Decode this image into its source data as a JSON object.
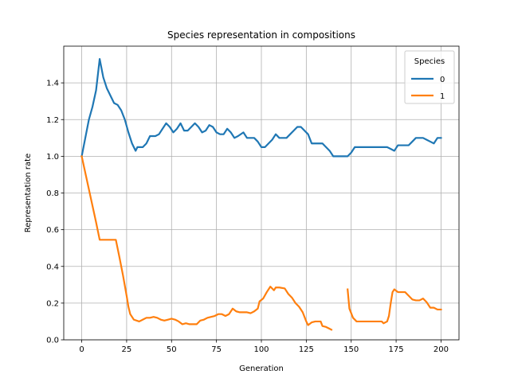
{
  "chart_data": {
    "type": "line",
    "title": "Species representation in compositions",
    "xlabel": "Generation",
    "ylabel": "Representation rate",
    "xlim": [
      -10,
      210
    ],
    "ylim": [
      0.0,
      1.6
    ],
    "xticks": [
      0,
      25,
      50,
      75,
      100,
      125,
      150,
      175,
      200
    ],
    "xtick_labels": [
      "0",
      "25",
      "50",
      "75",
      "100",
      "125",
      "150",
      "175",
      "200"
    ],
    "yticks": [
      0.0,
      0.2,
      0.4,
      0.6,
      0.8,
      1.0,
      1.2,
      1.4
    ],
    "ytick_labels": [
      "0.0",
      "0.2",
      "0.4",
      "0.6",
      "0.8",
      "1.0",
      "1.2",
      "1.4"
    ],
    "grid": true,
    "legend": {
      "title": "Species",
      "placement": "top-right"
    },
    "series": [
      {
        "name": "0",
        "color": "#1f77b4",
        "points": [
          [
            0,
            1.0
          ],
          [
            2,
            1.1
          ],
          [
            4,
            1.2
          ],
          [
            6,
            1.27
          ],
          [
            8,
            1.36
          ],
          [
            10,
            1.53
          ],
          [
            12,
            1.43
          ],
          [
            14,
            1.37
          ],
          [
            16,
            1.33
          ],
          [
            18,
            1.29
          ],
          [
            20,
            1.28
          ],
          [
            22,
            1.25
          ],
          [
            24,
            1.2
          ],
          [
            26,
            1.13
          ],
          [
            28,
            1.07
          ],
          [
            30,
            1.03
          ],
          [
            31,
            1.05
          ],
          [
            34,
            1.05
          ],
          [
            36,
            1.07
          ],
          [
            38,
            1.11
          ],
          [
            41,
            1.11
          ],
          [
            43,
            1.12
          ],
          [
            45,
            1.15
          ],
          [
            47,
            1.18
          ],
          [
            49,
            1.16
          ],
          [
            51,
            1.13
          ],
          [
            53,
            1.15
          ],
          [
            55,
            1.18
          ],
          [
            57,
            1.14
          ],
          [
            59,
            1.14
          ],
          [
            61,
            1.16
          ],
          [
            63,
            1.18
          ],
          [
            65,
            1.16
          ],
          [
            67,
            1.13
          ],
          [
            69,
            1.14
          ],
          [
            71,
            1.17
          ],
          [
            73,
            1.16
          ],
          [
            75,
            1.13
          ],
          [
            77,
            1.12
          ],
          [
            79,
            1.12
          ],
          [
            81,
            1.15
          ],
          [
            83,
            1.13
          ],
          [
            85,
            1.1
          ],
          [
            87,
            1.11
          ],
          [
            90,
            1.13
          ],
          [
            92,
            1.1
          ],
          [
            96,
            1.1
          ],
          [
            98,
            1.08
          ],
          [
            100,
            1.05
          ],
          [
            102,
            1.05
          ],
          [
            104,
            1.07
          ],
          [
            106,
            1.09
          ],
          [
            108,
            1.12
          ],
          [
            110,
            1.1
          ],
          [
            114,
            1.1
          ],
          [
            116,
            1.12
          ],
          [
            118,
            1.14
          ],
          [
            120,
            1.16
          ],
          [
            122,
            1.16
          ],
          [
            124,
            1.14
          ],
          [
            126,
            1.12
          ],
          [
            128,
            1.07
          ],
          [
            134,
            1.07
          ],
          [
            136,
            1.05
          ],
          [
            138,
            1.03
          ],
          [
            140,
            1.0
          ],
          [
            148,
            1.0
          ],
          [
            150,
            1.02
          ],
          [
            152,
            1.05
          ],
          [
            170,
            1.05
          ],
          [
            172,
            1.04
          ],
          [
            174,
            1.03
          ],
          [
            176,
            1.06
          ],
          [
            182,
            1.06
          ],
          [
            184,
            1.08
          ],
          [
            186,
            1.1
          ],
          [
            188,
            1.1
          ],
          [
            190,
            1.1
          ],
          [
            192,
            1.09
          ],
          [
            194,
            1.08
          ],
          [
            196,
            1.07
          ],
          [
            198,
            1.1
          ],
          [
            200,
            1.1
          ]
        ]
      },
      {
        "name": "1",
        "color": "#ff7f0e",
        "points": [
          [
            0,
            1.0
          ],
          [
            2,
            0.91
          ],
          [
            4,
            0.82
          ],
          [
            6,
            0.73
          ],
          [
            8,
            0.64
          ],
          [
            10,
            0.545
          ],
          [
            14,
            0.545
          ],
          [
            16,
            0.545
          ],
          [
            19,
            0.545
          ],
          [
            21,
            0.45
          ],
          [
            23,
            0.35
          ],
          [
            25,
            0.24
          ],
          [
            26,
            0.18
          ],
          [
            27,
            0.14
          ],
          [
            29,
            0.11
          ],
          [
            32,
            0.1
          ],
          [
            34,
            0.11
          ],
          [
            36,
            0.12
          ],
          [
            38,
            0.12
          ],
          [
            40,
            0.125
          ],
          [
            42,
            0.12
          ],
          [
            44,
            0.11
          ],
          [
            46,
            0.105
          ],
          [
            48,
            0.11
          ],
          [
            50,
            0.115
          ],
          [
            52,
            0.11
          ],
          [
            54,
            0.1
          ],
          [
            56,
            0.085
          ],
          [
            58,
            0.09
          ],
          [
            60,
            0.085
          ],
          [
            62,
            0.085
          ],
          [
            64,
            0.085
          ],
          [
            66,
            0.105
          ],
          [
            68,
            0.11
          ],
          [
            70,
            0.12
          ],
          [
            72,
            0.125
          ],
          [
            74,
            0.13
          ],
          [
            76,
            0.14
          ],
          [
            78,
            0.14
          ],
          [
            80,
            0.13
          ],
          [
            82,
            0.14
          ],
          [
            84,
            0.17
          ],
          [
            86,
            0.155
          ],
          [
            88,
            0.15
          ],
          [
            90,
            0.15
          ],
          [
            92,
            0.15
          ],
          [
            94,
            0.145
          ],
          [
            96,
            0.155
          ],
          [
            98,
            0.17
          ],
          [
            99,
            0.21
          ],
          [
            101,
            0.225
          ],
          [
            103,
            0.26
          ],
          [
            105,
            0.29
          ],
          [
            107,
            0.27
          ],
          [
            108,
            0.285
          ],
          [
            110,
            0.285
          ],
          [
            113,
            0.28
          ],
          [
            115,
            0.25
          ],
          [
            117,
            0.23
          ],
          [
            119,
            0.2
          ],
          [
            121,
            0.18
          ],
          [
            123,
            0.15
          ],
          [
            125,
            0.1
          ],
          [
            126,
            0.08
          ],
          [
            128,
            0.095
          ],
          [
            130,
            0.1
          ],
          [
            133,
            0.1
          ],
          [
            134,
            0.075
          ],
          [
            136,
            0.07
          ],
          [
            138,
            0.06
          ],
          [
            139,
            0.055
          ],
          null,
          [
            148,
            0.275
          ],
          [
            149,
            0.17
          ],
          [
            151,
            0.12
          ],
          [
            153,
            0.1
          ],
          [
            157,
            0.1
          ],
          [
            165,
            0.1
          ],
          [
            167,
            0.1
          ],
          [
            168,
            0.09
          ],
          [
            170,
            0.1
          ],
          [
            171,
            0.13
          ],
          [
            172,
            0.2
          ],
          [
            173,
            0.26
          ],
          [
            174,
            0.275
          ],
          [
            176,
            0.26
          ],
          [
            180,
            0.26
          ],
          [
            182,
            0.24
          ],
          [
            184,
            0.22
          ],
          [
            186,
            0.215
          ],
          [
            188,
            0.215
          ],
          [
            190,
            0.225
          ],
          [
            192,
            0.205
          ],
          [
            194,
            0.175
          ],
          [
            196,
            0.175
          ],
          [
            198,
            0.165
          ],
          [
            200,
            0.165
          ]
        ]
      }
    ]
  }
}
